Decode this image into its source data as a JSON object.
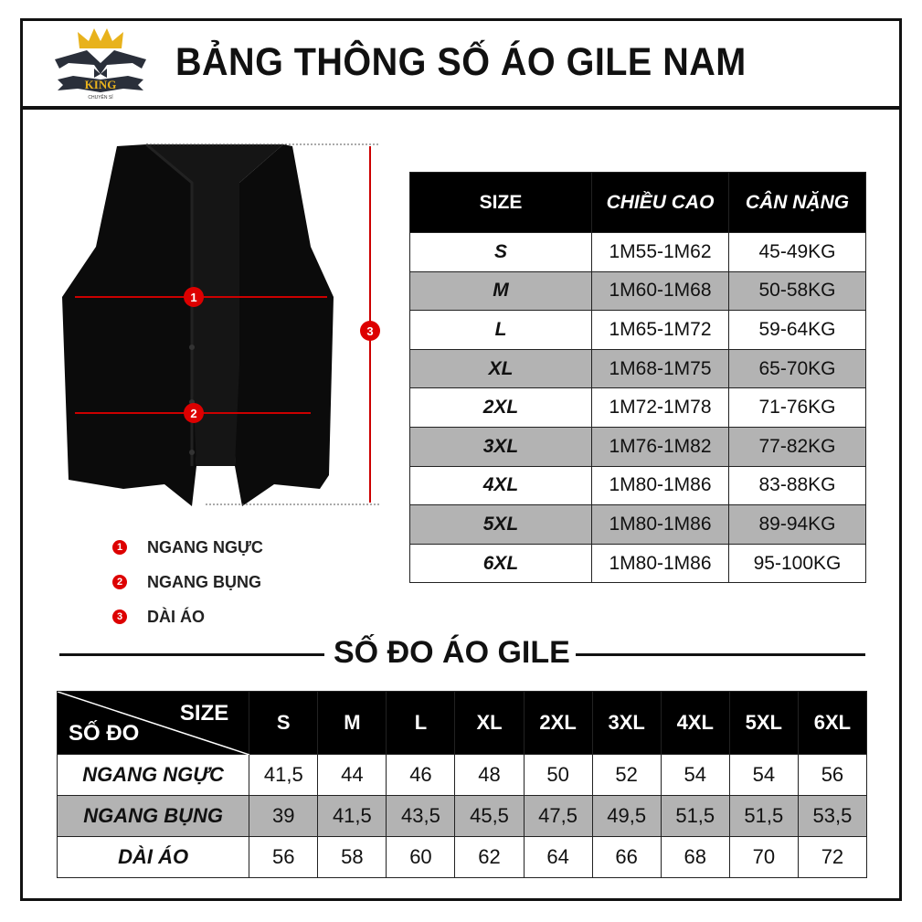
{
  "logo": {
    "brand": "KING",
    "sub": "CHUYÊN SỈ"
  },
  "title": "BẢNG THÔNG SỐ ÁO GILE NAM",
  "size_table": {
    "headers": [
      "SIZE",
      "CHIỀU CAO",
      "CÂN NẶNG"
    ],
    "rows": [
      {
        "size": "S",
        "height": "1M55-1M62",
        "weight": "45-49KG"
      },
      {
        "size": "M",
        "height": "1M60-1M68",
        "weight": "50-58KG"
      },
      {
        "size": "L",
        "height": "1M65-1M72",
        "weight": "59-64KG"
      },
      {
        "size": "XL",
        "height": "1M68-1M75",
        "weight": "65-70KG"
      },
      {
        "size": "2XL",
        "height": "1M72-1M78",
        "weight": "71-76KG"
      },
      {
        "size": "3XL",
        "height": "1M76-1M82",
        "weight": "77-82KG"
      },
      {
        "size": "4XL",
        "height": "1M80-1M86",
        "weight": "83-88KG"
      },
      {
        "size": "5XL",
        "height": "1M80-1M86",
        "weight": "89-94KG"
      },
      {
        "size": "6XL",
        "height": "1M80-1M86",
        "weight": "95-100KG"
      }
    ]
  },
  "legend": [
    {
      "num": "1",
      "label": "NGANG NGỰC"
    },
    {
      "num": "2",
      "label": "NGANG BỤNG"
    },
    {
      "num": "3",
      "label": "DÀI ÁO"
    }
  ],
  "section_title": "SỐ ĐO ÁO GILE",
  "measure_table": {
    "corner_top": "SIZE",
    "corner_bottom": "SỐ ĐO",
    "sizes": [
      "S",
      "M",
      "L",
      "XL",
      "2XL",
      "3XL",
      "4XL",
      "5XL",
      "6XL"
    ],
    "rows": [
      {
        "label": "NGANG NGỰC",
        "values": [
          "41,5",
          "44",
          "46",
          "48",
          "50",
          "52",
          "54",
          "54",
          "56"
        ]
      },
      {
        "label": "NGANG BỤNG",
        "values": [
          "39",
          "41,5",
          "43,5",
          "45,5",
          "47,5",
          "49,5",
          "51,5",
          "51,5",
          "53,5"
        ]
      },
      {
        "label": "DÀI ÁO",
        "values": [
          "56",
          "58",
          "60",
          "62",
          "64",
          "66",
          "68",
          "70",
          "72"
        ]
      }
    ]
  },
  "colors": {
    "marker": "#d00000",
    "row_alt": "#b3b3b3",
    "header": "#000000"
  }
}
